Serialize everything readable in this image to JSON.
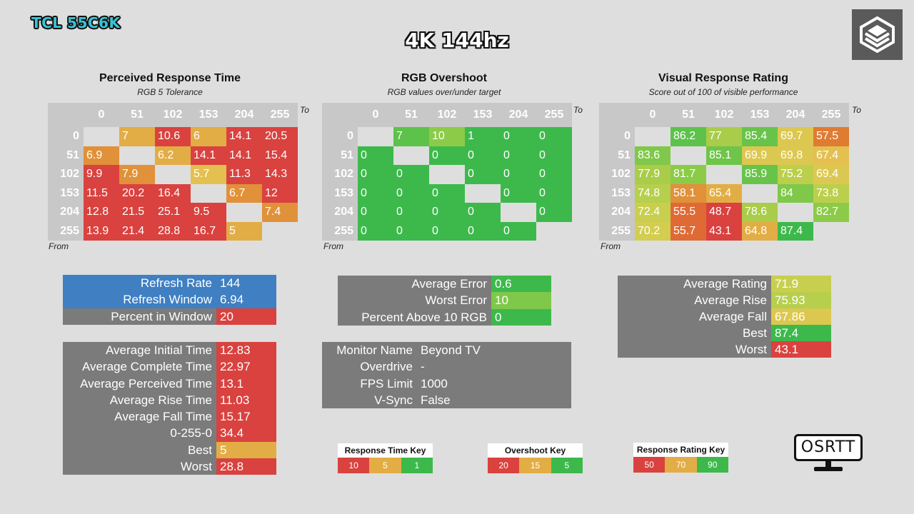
{
  "header": {
    "device": "TCL 55C6K",
    "mode": "4K 144hz"
  },
  "colors": {
    "red": "#d9423f",
    "orange": "#e07b32",
    "amber": "#e3ad45",
    "yellow": "#dcc850",
    "lime": "#b6cf4d",
    "green": "#3db94c",
    "lightgreen": "#7fc84a",
    "gray": "#7b7b7b",
    "blue": "#3f7fc2",
    "header_gray": "#c8c8c8"
  },
  "panels": {
    "response": {
      "title": "Perceived Response Time",
      "subtitle": "RGB 5 Tolerance"
    },
    "overshoot": {
      "title": "RGB Overshoot",
      "subtitle": "RGB values over/under target"
    },
    "rating": {
      "title": "Visual Response Rating",
      "subtitle": "Score out of 100 of visible performance"
    },
    "to_label": "To",
    "from_label": "From"
  },
  "chart_data": [
    {
      "type": "heatmap",
      "title": "Perceived Response Time",
      "subtitle": "RGB 5 Tolerance",
      "xlabel": "To",
      "ylabel": "From",
      "x": [
        "0",
        "51",
        "102",
        "153",
        "204",
        "255"
      ],
      "y": [
        "0",
        "51",
        "102",
        "153",
        "204",
        "255"
      ],
      "values": [
        [
          null,
          7,
          10.6,
          6,
          14.1,
          20.5
        ],
        [
          6.9,
          null,
          6.2,
          14.1,
          14.1,
          15.4
        ],
        [
          9.9,
          7.9,
          null,
          5.7,
          11.3,
          14.3
        ],
        [
          11.5,
          20.2,
          16.4,
          null,
          6.7,
          12
        ],
        [
          12.8,
          21.5,
          25.1,
          9.5,
          null,
          7.4
        ],
        [
          13.9,
          21.4,
          28.8,
          16.7,
          5,
          null
        ]
      ],
      "colors": [
        [
          null,
          "#e3ad45",
          "#d9423f",
          "#e3ad45",
          "#d9423f",
          "#d9423f"
        ],
        [
          "#e0913a",
          null,
          "#e3ad45",
          "#d9423f",
          "#d9423f",
          "#d9423f"
        ],
        [
          "#d9423f",
          "#e0913a",
          null,
          "#e3c050",
          "#d9423f",
          "#d9423f"
        ],
        [
          "#d9423f",
          "#d9423f",
          "#d9423f",
          null,
          "#e0913a",
          "#d9423f"
        ],
        [
          "#d9423f",
          "#d9423f",
          "#d9423f",
          "#d9423f",
          null,
          "#e0913a"
        ],
        [
          "#d9423f",
          "#d9423f",
          "#d9423f",
          "#d9423f",
          "#e3ad45",
          null
        ]
      ]
    },
    {
      "type": "heatmap",
      "title": "RGB Overshoot",
      "subtitle": "RGB values over/under target",
      "xlabel": "To",
      "ylabel": "From",
      "x": [
        "0",
        "51",
        "102",
        "153",
        "204",
        "255"
      ],
      "y": [
        "0",
        "51",
        "102",
        "153",
        "204",
        "255"
      ],
      "values": [
        [
          null,
          7,
          10,
          1,
          0,
          0
        ],
        [
          0,
          null,
          0,
          0,
          0,
          0
        ],
        [
          0,
          0,
          null,
          0,
          0,
          0
        ],
        [
          0,
          0,
          0,
          null,
          0,
          0
        ],
        [
          0,
          0,
          0,
          0,
          null,
          0
        ],
        [
          0,
          0,
          0,
          0,
          0,
          null
        ]
      ],
      "colors": [
        [
          null,
          "#5cc24a",
          "#8ccb48",
          "#3db94c",
          "#3db94c",
          "#3db94c"
        ],
        [
          "#3db94c",
          null,
          "#3db94c",
          "#3db94c",
          "#3db94c",
          "#3db94c"
        ],
        [
          "#3db94c",
          "#3db94c",
          null,
          "#3db94c",
          "#3db94c",
          "#3db94c"
        ],
        [
          "#3db94c",
          "#3db94c",
          "#3db94c",
          null,
          "#3db94c",
          "#3db94c"
        ],
        [
          "#3db94c",
          "#3db94c",
          "#3db94c",
          "#3db94c",
          null,
          "#3db94c"
        ],
        [
          "#3db94c",
          "#3db94c",
          "#3db94c",
          "#3db94c",
          "#3db94c",
          null
        ]
      ]
    },
    {
      "type": "heatmap",
      "title": "Visual Response Rating",
      "subtitle": "Score out of 100 of visible performance",
      "xlabel": "To",
      "ylabel": "From",
      "x": [
        "0",
        "51",
        "102",
        "153",
        "204",
        "255"
      ],
      "y": [
        "0",
        "51",
        "102",
        "153",
        "204",
        "255"
      ],
      "values": [
        [
          null,
          86.2,
          77,
          85.4,
          69.7,
          57.5
        ],
        [
          83.6,
          null,
          85.1,
          69.9,
          69.8,
          67.4
        ],
        [
          77.9,
          81.7,
          null,
          85.9,
          75.2,
          69.4
        ],
        [
          74.8,
          58.1,
          65.4,
          null,
          84,
          73.8
        ],
        [
          72.4,
          55.5,
          48.7,
          78.6,
          null,
          82.7
        ],
        [
          70.2,
          55.7,
          43.1,
          64.8,
          87.4,
          null
        ]
      ],
      "colors": [
        [
          null,
          "#5cc24a",
          "#a9cc4a",
          "#68c34a",
          "#dcc850",
          "#e07b32"
        ],
        [
          "#7fc84a",
          null,
          "#6ec549",
          "#dcc850",
          "#dcc850",
          "#e3c050"
        ],
        [
          "#a9cc4a",
          "#8ccb48",
          null,
          "#68c34a",
          "#bccf4c",
          "#dcc850"
        ],
        [
          "#b6cf4d",
          "#e0913a",
          "#e3ad45",
          null,
          "#7fc84a",
          "#bccf4c"
        ],
        [
          "#c8cf4e",
          "#e06a35",
          "#d9423f",
          "#a9cc4a",
          null,
          "#8ccb48"
        ],
        [
          "#d3cd50",
          "#e06a35",
          "#d9423f",
          "#e3ad45",
          "#3db94c",
          null
        ]
      ]
    }
  ],
  "stats": {
    "refresh": [
      {
        "label": "Refresh Rate",
        "value": "144",
        "label_bg": "#3f7fc2",
        "value_bg": "#3f7fc2"
      },
      {
        "label": "Refresh Window",
        "value": "6.94",
        "label_bg": "#3f7fc2",
        "value_bg": "#3f7fc2"
      },
      {
        "label": "Percent in Window",
        "value": "20",
        "label_bg": "#7b7b7b",
        "value_bg": "#d9423f"
      }
    ],
    "timing": [
      {
        "label": "Average Initial Time",
        "value": "12.83",
        "value_bg": "#d9423f"
      },
      {
        "label": "Average Complete Time",
        "value": "22.97",
        "value_bg": "#d9423f"
      },
      {
        "label": "Average Perceived Time",
        "value": "13.1",
        "value_bg": "#d9423f"
      },
      {
        "label": "Average Rise Time",
        "value": "11.03",
        "value_bg": "#d9423f"
      },
      {
        "label": "Average Fall Time",
        "value": "15.17",
        "value_bg": "#d9423f"
      },
      {
        "label": "0-255-0",
        "value": "34.4",
        "value_bg": "#d9423f"
      },
      {
        "label": "Best",
        "value": "5",
        "value_bg": "#e3ad45"
      },
      {
        "label": "Worst",
        "value": "28.8",
        "value_bg": "#d9423f"
      }
    ],
    "overshoot": [
      {
        "label": "Average Error",
        "value": "0.6",
        "value_bg": "#3db94c"
      },
      {
        "label": "Worst Error",
        "value": "10",
        "value_bg": "#7fc84a"
      },
      {
        "label": "Percent Above 10 RGB",
        "value": "0",
        "value_bg": "#3db94c"
      }
    ],
    "monitor": [
      {
        "label": "Monitor Name",
        "value": "Beyond TV"
      },
      {
        "label": "Overdrive",
        "value": "-"
      },
      {
        "label": "FPS Limit",
        "value": "1000"
      },
      {
        "label": "V-Sync",
        "value": "False"
      }
    ],
    "rating": [
      {
        "label": "Average Rating",
        "value": "71.9",
        "value_bg": "#c8cf4e"
      },
      {
        "label": "Average Rise",
        "value": "75.93",
        "value_bg": "#b6cf4d"
      },
      {
        "label": "Average Fall",
        "value": "67.86",
        "value_bg": "#dcc850"
      },
      {
        "label": "Best",
        "value": "87.4",
        "value_bg": "#3db94c"
      },
      {
        "label": "Worst",
        "value": "43.1",
        "value_bg": "#d9423f"
      }
    ]
  },
  "keys": [
    {
      "title": "Response Time Key",
      "items": [
        {
          "label": "10",
          "color": "#d9423f"
        },
        {
          "label": "5",
          "color": "#e3ad45"
        },
        {
          "label": "1",
          "color": "#3db94c"
        }
      ]
    },
    {
      "title": "Overshoot Key",
      "items": [
        {
          "label": "20",
          "color": "#d9423f"
        },
        {
          "label": "15",
          "color": "#e3ad45"
        },
        {
          "label": "5",
          "color": "#3db94c"
        }
      ]
    },
    {
      "title": "Response Rating Key",
      "items": [
        {
          "label": "50",
          "color": "#d9423f"
        },
        {
          "label": "70",
          "color": "#e3ad45"
        },
        {
          "label": "90",
          "color": "#3db94c"
        }
      ]
    }
  ],
  "footer_logo": {
    "text": "OSRTT",
    "icon": "monitor-icon"
  },
  "corner_logo": {
    "icon": "cube-logo-icon"
  }
}
